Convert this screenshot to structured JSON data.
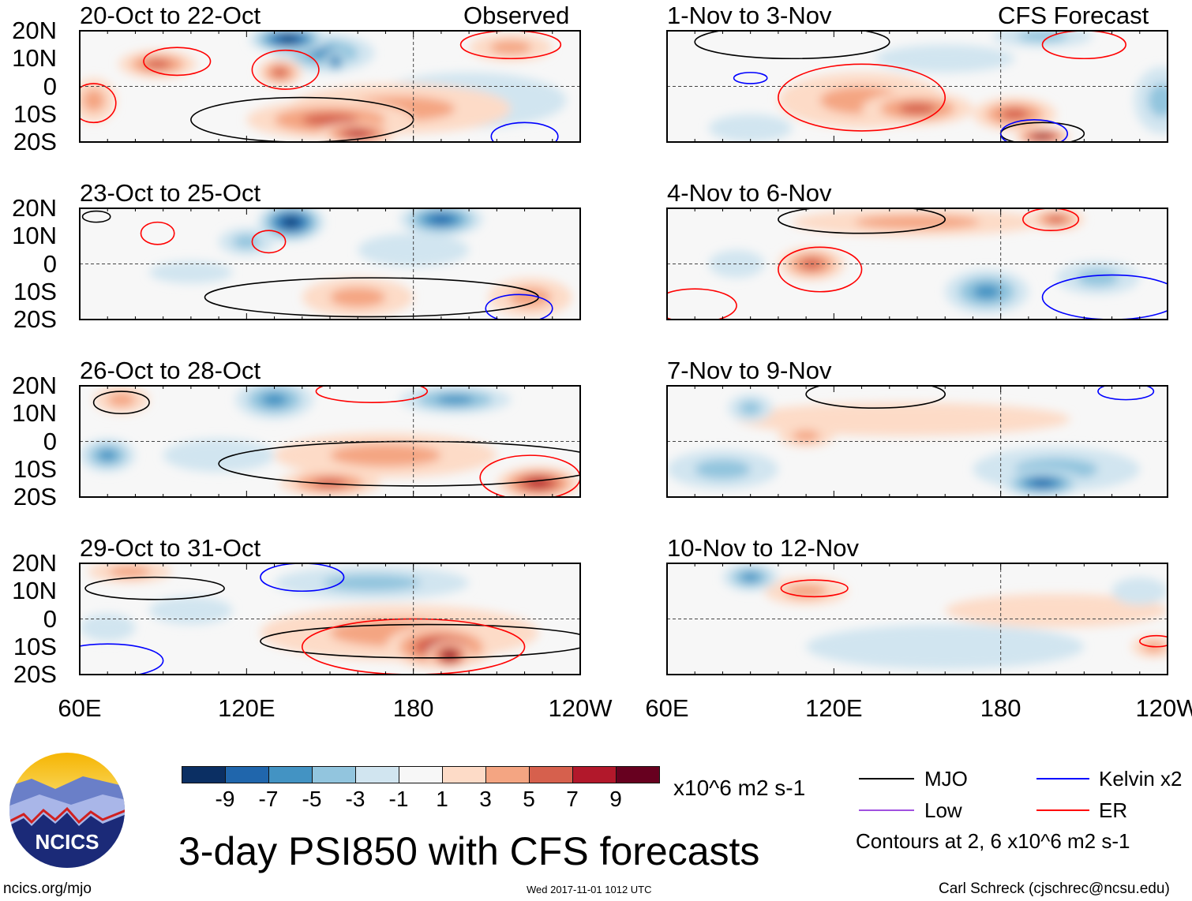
{
  "chart_data": {
    "type": "heatmap",
    "title": "3-day PSI850 with CFS forecasts",
    "units": "x10^6 m2 s-1",
    "lon_range": [
      60,
      240
    ],
    "lat_range": [
      -20,
      20
    ],
    "lon_ticks": [
      "60E",
      "120E",
      "180",
      "120W"
    ],
    "lat_ticks": [
      "20N",
      "10N",
      "0",
      "10S",
      "20S"
    ],
    "observed_label": "Observed",
    "forecast_label": "CFS Forecast",
    "levels": [
      -9,
      -7,
      -5,
      -3,
      -1,
      1,
      3,
      5,
      7,
      9
    ],
    "level_labels": [
      "-9",
      "-7",
      "-5",
      "-3",
      "-1",
      "1",
      "3",
      "5",
      "7",
      "9"
    ],
    "colors": [
      "#0b2f63",
      "#2066ac",
      "#4393c3",
      "#92c5de",
      "#d1e5f0",
      "#f7f7f7",
      "#fddbc7",
      "#f4a582",
      "#d6604d",
      "#b2182b",
      "#67001f"
    ],
    "panels": [
      {
        "title": "20-Oct to 22-Oct",
        "anoms": [
          [
            175,
            -8,
            40,
            9,
            3
          ],
          [
            200,
            -5,
            35,
            10,
            -2
          ],
          [
            135,
            17,
            14,
            5,
            -9
          ],
          [
            148,
            12,
            18,
            7,
            -5
          ],
          [
            152,
            9,
            4,
            4,
            -7
          ],
          [
            132,
            5,
            8,
            5,
            5
          ],
          [
            88,
            8,
            14,
            5,
            5
          ],
          [
            150,
            -12,
            30,
            7,
            5
          ],
          [
            160,
            -17,
            14,
            4,
            7
          ],
          [
            65,
            -5,
            8,
            8,
            3
          ],
          [
            215,
            14,
            15,
            5,
            3
          ]
        ],
        "contours": [
          [
            140,
            -12,
            40,
            8,
            "#000"
          ],
          [
            220,
            -18,
            12,
            5,
            "#00f"
          ],
          [
            95,
            9,
            12,
            5,
            "#f00"
          ],
          [
            134,
            6,
            12,
            7,
            "#f00"
          ],
          [
            215,
            15,
            18,
            5,
            "#f00"
          ],
          [
            65,
            -6,
            8,
            7,
            "#f00"
          ]
        ]
      },
      {
        "title": "23-Oct to 25-Oct",
        "anoms": [
          [
            136,
            15,
            12,
            7,
            -9
          ],
          [
            190,
            16,
            15,
            6,
            -7
          ],
          [
            120,
            8,
            10,
            5,
            -3
          ],
          [
            160,
            -12,
            20,
            7,
            3
          ],
          [
            222,
            -12,
            15,
            7,
            3
          ],
          [
            100,
            -3,
            15,
            4,
            -2
          ],
          [
            180,
            5,
            20,
            6,
            -2
          ]
        ],
        "contours": [
          [
            165,
            -12,
            60,
            7,
            "#000"
          ],
          [
            88,
            11,
            6,
            4,
            "#f00"
          ],
          [
            128,
            8,
            6,
            4,
            "#f00"
          ],
          [
            218,
            -16,
            12,
            5,
            "#00f"
          ],
          [
            66,
            17,
            5,
            2,
            "#000"
          ]
        ]
      },
      {
        "title": "26-Oct to 28-Oct",
        "anoms": [
          [
            130,
            15,
            14,
            7,
            -5
          ],
          [
            195,
            15,
            20,
            5,
            -5
          ],
          [
            70,
            -5,
            10,
            6,
            -5
          ],
          [
            110,
            -5,
            20,
            6,
            -2
          ],
          [
            170,
            -5,
            40,
            8,
            3
          ],
          [
            150,
            -15,
            18,
            5,
            5
          ],
          [
            225,
            -15,
            15,
            6,
            7
          ],
          [
            75,
            15,
            10,
            5,
            3
          ]
        ],
        "contours": [
          [
            180,
            -8,
            70,
            8,
            "#000"
          ],
          [
            222,
            -13,
            18,
            8,
            "#f00"
          ],
          [
            165,
            18,
            20,
            4,
            "#f00"
          ],
          [
            75,
            14,
            10,
            4,
            "#000"
          ]
        ]
      },
      {
        "title": "29-Oct to 31-Oct",
        "anoms": [
          [
            78,
            17,
            15,
            4,
            3
          ],
          [
            165,
            13,
            35,
            6,
            -3
          ],
          [
            175,
            -5,
            50,
            10,
            3
          ],
          [
            190,
            -10,
            20,
            8,
            7
          ],
          [
            193,
            -13,
            8,
            5,
            9
          ],
          [
            100,
            3,
            15,
            5,
            -2
          ],
          [
            70,
            -3,
            10,
            5,
            -2
          ]
        ],
        "contours": [
          [
            185,
            -8,
            60,
            6,
            "#000"
          ],
          [
            180,
            -10,
            40,
            10,
            "#f00"
          ],
          [
            87,
            11,
            25,
            4,
            "#000"
          ],
          [
            140,
            15,
            15,
            5,
            "#00f"
          ],
          [
            70,
            -15,
            20,
            6,
            "#00f"
          ]
        ]
      },
      {
        "title": "1-Nov to 3-Nov",
        "anoms": [
          [
            130,
            -5,
            30,
            10,
            3
          ],
          [
            150,
            -8,
            20,
            6,
            5
          ],
          [
            185,
            -10,
            15,
            6,
            5
          ],
          [
            195,
            -18,
            10,
            3,
            9
          ],
          [
            238,
            -5,
            10,
            12,
            -3
          ],
          [
            195,
            18,
            18,
            4,
            -3
          ],
          [
            90,
            -15,
            15,
            5,
            -2
          ],
          [
            160,
            10,
            25,
            5,
            -1
          ]
        ],
        "contours": [
          [
            130,
            -4,
            30,
            12,
            "#f00"
          ],
          [
            195,
            -17,
            15,
            4,
            "#000"
          ],
          [
            192,
            -17,
            12,
            5,
            "#00f"
          ],
          [
            90,
            3,
            6,
            2,
            "#00f"
          ],
          [
            105,
            16,
            35,
            6,
            "#000"
          ],
          [
            210,
            15,
            15,
            5,
            "#f00"
          ]
        ]
      },
      {
        "title": "4-Nov to 6-Nov",
        "anoms": [
          [
            112,
            0,
            12,
            6,
            5
          ],
          [
            200,
            16,
            10,
            4,
            5
          ],
          [
            175,
            -10,
            15,
            8,
            -5
          ],
          [
            215,
            -5,
            15,
            6,
            -3
          ],
          [
            150,
            15,
            45,
            5,
            3
          ],
          [
            85,
            0,
            10,
            5,
            -2
          ]
        ],
        "contours": [
          [
            115,
            -2,
            15,
            8,
            "#f00"
          ],
          [
            130,
            16,
            30,
            5,
            "#000"
          ],
          [
            220,
            -12,
            25,
            8,
            "#00f"
          ],
          [
            198,
            16,
            10,
            4,
            "#f00"
          ],
          [
            70,
            -15,
            15,
            6,
            "#f00"
          ]
        ]
      },
      {
        "title": "7-Nov to 9-Nov",
        "anoms": [
          [
            195,
            -15,
            15,
            5,
            -7
          ],
          [
            200,
            -10,
            30,
            8,
            -3
          ],
          [
            80,
            -10,
            20,
            7,
            -3
          ],
          [
            90,
            12,
            8,
            5,
            -3
          ],
          [
            145,
            8,
            60,
            6,
            2
          ],
          [
            110,
            2,
            10,
            4,
            3
          ]
        ],
        "contours": [
          [
            135,
            17,
            25,
            5,
            "#000"
          ],
          [
            225,
            18,
            10,
            3,
            "#00f"
          ]
        ]
      },
      {
        "title": "10-Nov to 12-Nov",
        "anoms": [
          [
            90,
            15,
            10,
            5,
            -5
          ],
          [
            160,
            -10,
            50,
            8,
            -2
          ],
          [
            200,
            3,
            40,
            6,
            2
          ],
          [
            235,
            -10,
            8,
            4,
            3
          ],
          [
            110,
            10,
            15,
            5,
            3
          ],
          [
            230,
            10,
            10,
            5,
            -2
          ]
        ],
        "contours": [
          [
            113,
            11,
            12,
            3,
            "#f00"
          ],
          [
            236,
            -8,
            6,
            2,
            "#f00"
          ]
        ]
      }
    ]
  },
  "legend": {
    "mjo": "MJO",
    "low": "Low",
    "kelvin": "Kelvin x2",
    "er": "ER",
    "contours_note": "Contours at 2, 6 x10^6 m2 s-1"
  },
  "logo": {
    "text": "NCICS"
  },
  "footer": {
    "url": "ncics.org/mjo",
    "timestamp": "Wed 2017-11-01 1012 UTC",
    "credit": "Carl Schreck (cjschrec@ncsu.edu)"
  }
}
